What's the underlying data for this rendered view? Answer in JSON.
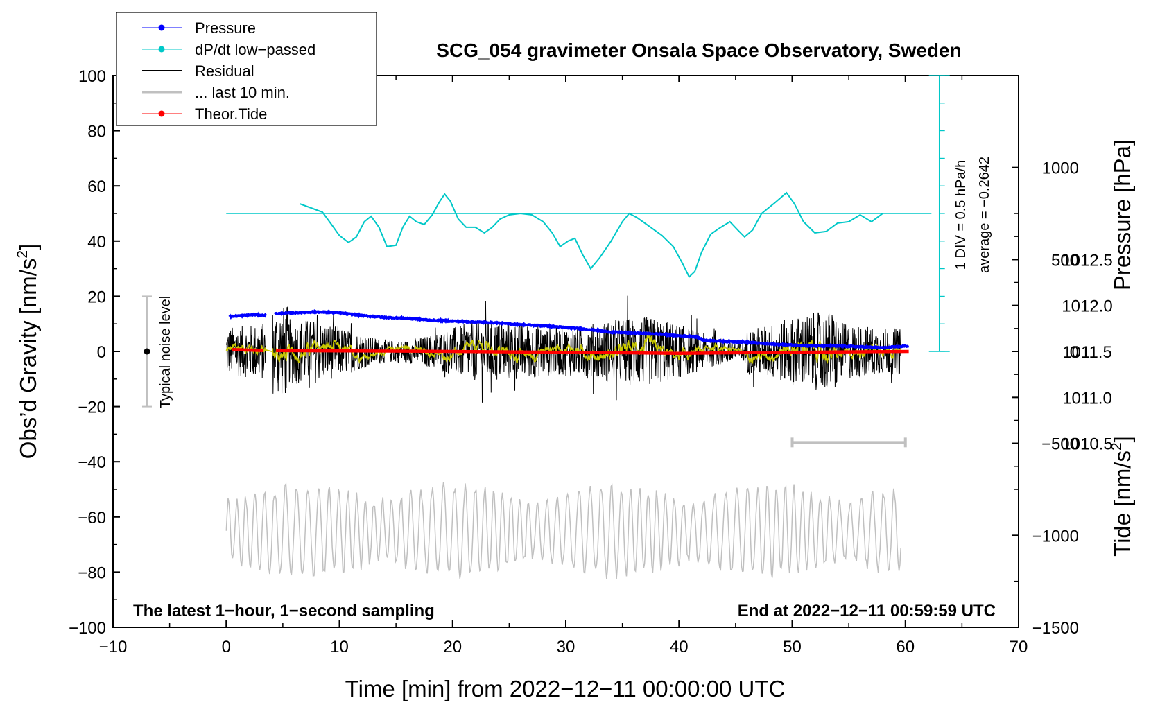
{
  "chart_data": {
    "type": "line",
    "title": "SCG_054 gravimeter Onsala Space Observatory, Sweden",
    "xlabel": "Time [min] from 2022−12−11 00:00:00 UTC",
    "ylabel_left_main": "Obs’d Gravity [nm/s",
    "ylabel_left_sup": "2",
    "ylabel_left_end": "]",
    "ylabel_right_pressure": "Pressure [hPa]",
    "ylabel_right_tide_main": "Tide [nm/s",
    "ylabel_right_tide_sup": "2",
    "ylabel_right_tide_end": "]",
    "xlim": [
      -10,
      70
    ],
    "ylim": [
      -100,
      100
    ],
    "pressure_lim": [
      1008.5,
      1014.5
    ],
    "tide_lim": [
      -1500,
      1500
    ],
    "x_ticks": [
      "−10",
      "0",
      "10",
      "20",
      "30",
      "40",
      "50",
      "60",
      "70"
    ],
    "y_ticks": [
      "−100",
      "−80",
      "−60",
      "−40",
      "−20",
      "0",
      "20",
      "40",
      "60",
      "80",
      "100"
    ],
    "pressure_ticks": [
      "1010.5",
      "1011.0",
      "1011.5",
      "1012.0",
      "1012.5"
    ],
    "tide_ticks": [
      "−1500",
      "−1000",
      "−500",
      "0",
      "500",
      "1000"
    ],
    "legend": {
      "position": "top-left",
      "items": [
        {
          "label": "Pressure",
          "color": "#0000ff",
          "marker": true
        },
        {
          "label": "dP/dt low−passed",
          "color": "#00c8c8",
          "marker": true
        },
        {
          "label": "Residual",
          "color": "#000000",
          "marker": false
        },
        {
          "label": "... last 10 min.",
          "color": "#c0c0c0",
          "marker": false
        },
        {
          "label": "Theor.Tide",
          "color": "#ff0000",
          "marker": true
        }
      ]
    },
    "annotations": {
      "noise_label": "Typical noise level",
      "noise_range": [
        -20,
        20
      ],
      "noise_x": -7,
      "div_label": "1 DIV = 0.5 hPa/h",
      "average_label": "average = −0.2642",
      "bottom_left": "The latest 1−hour, 1−second sampling",
      "bottom_right": "End at 2022−12−11 00:59:59 UTC",
      "last10_bar_x": [
        50,
        60
      ],
      "last10_bar_y": -33,
      "dpdt_scale_x": 63,
      "dpdt_baseline_y": 50
    },
    "series": [
      {
        "name": "Pressure",
        "axis": "pressure",
        "color": "#0000ff",
        "segments": [
          [
            [
              0.3,
              1011.88
            ],
            [
              1.5,
              1011.89
            ],
            [
              2.5,
              1011.9
            ],
            [
              3.5,
              1011.89
            ]
          ],
          [
            [
              4.3,
              1011.91
            ],
            [
              6,
              1011.92
            ],
            [
              8,
              1011.93
            ],
            [
              10,
              1011.92
            ],
            [
              12,
              1011.89
            ],
            [
              14,
              1011.87
            ],
            [
              16,
              1011.86
            ],
            [
              18,
              1011.84
            ],
            [
              20,
              1011.83
            ],
            [
              22,
              1011.82
            ],
            [
              24,
              1011.81
            ],
            [
              26,
              1011.79
            ],
            [
              28,
              1011.78
            ],
            [
              30,
              1011.76
            ],
            [
              32,
              1011.74
            ],
            [
              34,
              1011.71
            ],
            [
              36,
              1011.7
            ],
            [
              38,
              1011.69
            ],
            [
              40,
              1011.67
            ],
            [
              41.5,
              1011.66
            ],
            [
              42.2,
              1011.62
            ],
            [
              44,
              1011.61
            ],
            [
              46,
              1011.6
            ],
            [
              48,
              1011.58
            ],
            [
              50,
              1011.57
            ],
            [
              52,
              1011.56
            ],
            [
              54,
              1011.56
            ],
            [
              56,
              1011.55
            ],
            [
              58,
              1011.54
            ],
            [
              60.3,
              1011.56
            ]
          ]
        ]
      },
      {
        "name": "dP/dt low-passed",
        "axis": "gravity",
        "color": "#00c8c8",
        "points": [
          [
            6.5,
            53.5
          ],
          [
            7.5,
            52
          ],
          [
            8.5,
            50.5
          ],
          [
            9.3,
            46
          ],
          [
            10,
            42
          ],
          [
            10.8,
            39.5
          ],
          [
            11.5,
            41.5
          ],
          [
            12.2,
            47
          ],
          [
            12.8,
            49
          ],
          [
            13.5,
            45
          ],
          [
            14.2,
            38
          ],
          [
            15,
            38.5
          ],
          [
            15.6,
            45
          ],
          [
            16.2,
            49
          ],
          [
            16.8,
            47
          ],
          [
            17.5,
            46
          ],
          [
            18.2,
            49.5
          ],
          [
            18.8,
            54
          ],
          [
            19.3,
            57
          ],
          [
            19.8,
            54.5
          ],
          [
            20.5,
            48
          ],
          [
            21.2,
            45
          ],
          [
            22,
            45
          ],
          [
            22.8,
            43
          ],
          [
            23.5,
            45
          ],
          [
            24.2,
            48
          ],
          [
            25,
            49.5
          ],
          [
            26,
            50
          ],
          [
            27,
            49.5
          ],
          [
            28,
            47
          ],
          [
            28.8,
            43
          ],
          [
            29.5,
            38
          ],
          [
            30.2,
            40
          ],
          [
            30.8,
            41
          ],
          [
            31.5,
            35
          ],
          [
            32.2,
            30
          ],
          [
            33,
            34
          ],
          [
            34,
            40
          ],
          [
            35,
            47
          ],
          [
            35.6,
            50
          ],
          [
            36.3,
            48.5
          ],
          [
            37.5,
            45
          ],
          [
            38.5,
            42
          ],
          [
            39.5,
            38
          ],
          [
            40.3,
            32
          ],
          [
            40.9,
            27
          ],
          [
            41.4,
            29
          ],
          [
            42,
            36
          ],
          [
            42.8,
            42.5
          ],
          [
            43.5,
            44.5
          ],
          [
            44.5,
            47
          ],
          [
            45.2,
            44
          ],
          [
            45.8,
            41.5
          ],
          [
            46.5,
            44
          ],
          [
            47.3,
            50
          ],
          [
            48.5,
            54
          ],
          [
            49.5,
            57.5
          ],
          [
            50.2,
            53.5
          ],
          [
            51,
            47
          ],
          [
            52,
            43
          ],
          [
            53,
            43.5
          ],
          [
            54,
            46.5
          ],
          [
            55,
            47
          ],
          [
            56,
            49.5
          ],
          [
            57,
            47
          ],
          [
            58,
            50
          ]
        ]
      },
      {
        "name": "Residual",
        "axis": "gravity",
        "color": "#000000",
        "note": "approx. 1-second residual noise, amplitude ~±15 nm/s2, centered near 0; gap 3.5–4.0 min"
      },
      {
        "name": "Residual smoothed",
        "axis": "gravity",
        "color": "#c8c800",
        "note": "low-passed residual near 0 nm/s2"
      },
      {
        "name": "... last 10 min.",
        "axis": "gravity",
        "color": "#c0c0c0",
        "note": "last 10 min of residual replotted at offset −65 nm/s2, amplitude ~±15"
      },
      {
        "name": "Theor.Tide",
        "axis": "tide",
        "color": "#ff0000",
        "segments": [
          [
            [
              0.5,
              10
            ],
            [
              3.3,
              5
            ]
          ],
          [
            [
              4.4,
              5
            ],
            [
              10,
              3
            ],
            [
              20,
              0
            ],
            [
              30,
              -5
            ],
            [
              40,
              -10
            ],
            [
              50,
              -5
            ],
            [
              60.3,
              0
            ]
          ]
        ]
      }
    ]
  }
}
